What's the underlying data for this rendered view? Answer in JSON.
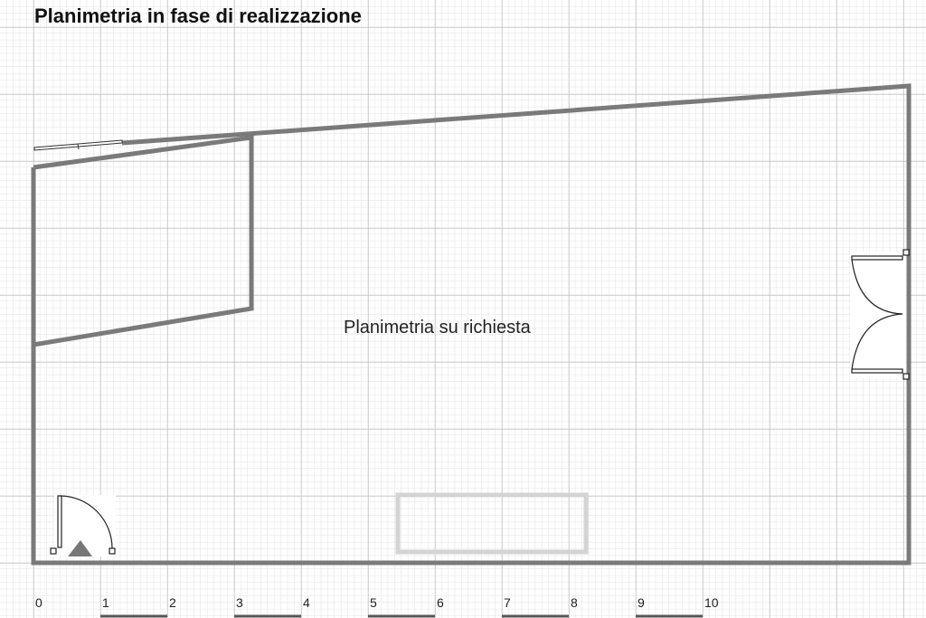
{
  "title": "Planimetria in fase di realizzazione",
  "center_label": "Planimetria su richiesta",
  "scale_ticks": [
    "0",
    "1",
    "2",
    "3",
    "4",
    "5",
    "6",
    "7",
    "8",
    "9",
    "10"
  ],
  "colors": {
    "wall": "#7a7a7a",
    "grid_major": "#bdbdbd",
    "grid_minor": "#e2e2e2",
    "placeholder_box": "#d4d4d4"
  }
}
